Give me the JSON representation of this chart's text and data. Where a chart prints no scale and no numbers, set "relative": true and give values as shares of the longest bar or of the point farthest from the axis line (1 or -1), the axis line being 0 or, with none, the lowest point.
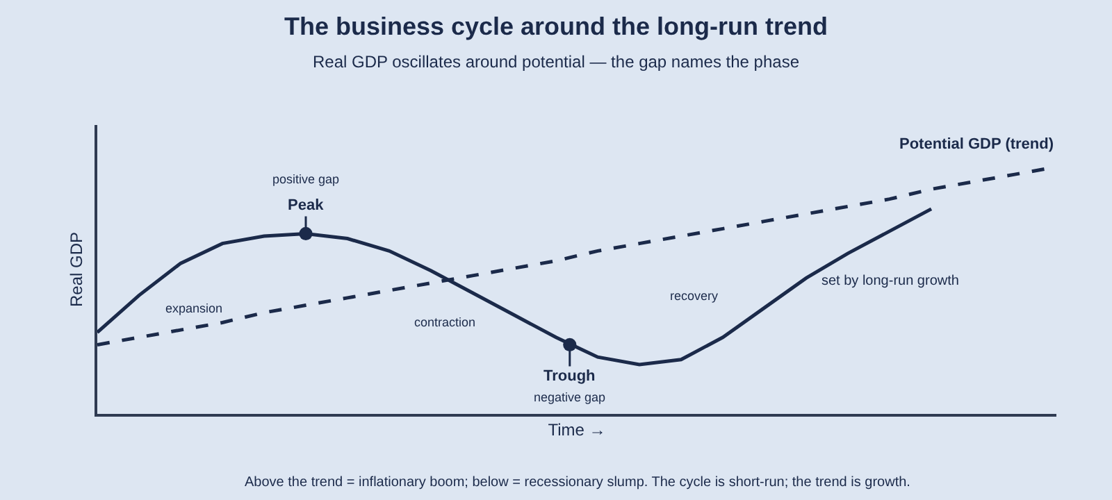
{
  "chart_data": {
    "type": "line",
    "title": "The business cycle around the long-run trend",
    "subtitle": "Real GDP oscillates around potential — the gap names the phase",
    "xlabel": "Time →",
    "ylabel": "Real GDP",
    "relative": true,
    "legend": false,
    "grid": false,
    "marker": "none",
    "categories": [
      null,
      null,
      null,
      null,
      null,
      null,
      null,
      null,
      null,
      null,
      null,
      null,
      null,
      null,
      null,
      null,
      null,
      null,
      null,
      null,
      null,
      null,
      null,
      null
    ],
    "series": [
      {
        "color": "#1b2a4a",
        "line_style": "solid",
        "values": [
          0.33,
          0.48,
          0.61,
          0.69,
          0.72,
          0.73,
          0.71,
          0.66,
          0.58,
          0.49,
          0.4,
          0.31,
          0.23,
          0.2,
          0.22,
          0.31,
          0.43,
          0.55,
          0.65,
          0.74,
          0.83,
          null,
          null,
          null
        ]
      },
      {
        "name": "Potential GDP (trend)",
        "color": "#1b2a4a",
        "line_style": "dashed",
        "values": [
          0.28,
          0.31,
          0.34,
          0.37,
          0.41,
          0.44,
          0.47,
          0.5,
          0.53,
          0.56,
          0.59,
          0.62,
          0.66,
          0.69,
          0.72,
          0.75,
          0.78,
          0.81,
          0.84,
          0.87,
          0.91,
          0.94,
          0.97,
          1.0
        ]
      }
    ],
    "annotations": [
      "positive gap",
      {
        "text": "Peak",
        "y": 0.73
      },
      {
        "text": "Trough",
        "y": 0.28
      },
      "negative gap",
      "expansion",
      "contraction",
      "recovery",
      "set by long-run growth",
      "Above the trend = inflationary boom; below = recessionary slump. The cycle is short-run; the trend is growth."
    ]
  }
}
